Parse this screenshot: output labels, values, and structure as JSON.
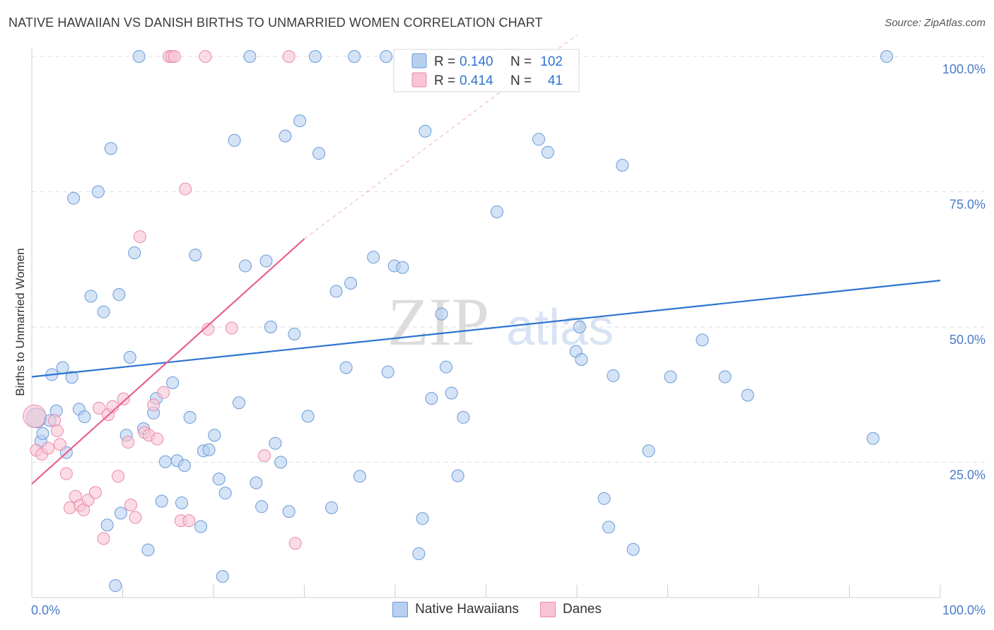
{
  "header": {
    "title": "NATIVE HAWAIIAN VS DANISH BIRTHS TO UNMARRIED WOMEN CORRELATION CHART",
    "source": "Source: ZipAtlas.com"
  },
  "watermark": {
    "zip": "ZIP",
    "atlas": "atlas"
  },
  "colors": {
    "blue_fill": "#b8d0f0",
    "blue_stroke": "#6a9ad8",
    "blue_line": "#2f74d0",
    "pink_fill": "#f8c4d4",
    "pink_stroke": "#ea8aa8",
    "pink_line": "#e8608e",
    "tick_label": "#4a7cc8",
    "grid": "#dedede"
  },
  "stats_legend": {
    "rows": [
      {
        "r_label": "R =",
        "r_value": "0.140",
        "n_label": "N =",
        "n_value": "102"
      },
      {
        "r_label": "R =",
        "r_value": "0.414",
        "n_label": "N =",
        "n_value": "41"
      }
    ]
  },
  "bottom_legend": {
    "items": [
      "Native Hawaiians",
      "Danes"
    ]
  },
  "chart_data": {
    "type": "scatter",
    "title": "NATIVE HAWAIIAN VS DANISH BIRTHS TO UNMARRIED WOMEN CORRELATION CHART",
    "xlabel": "",
    "ylabel": "Births to Unmarried Women",
    "xlim": [
      0,
      100
    ],
    "ylim": [
      0,
      100
    ],
    "x_tick_labels": [
      "0.0%",
      "100.0%"
    ],
    "y_ticks": [
      25,
      50,
      75,
      100
    ],
    "y_tick_labels": [
      "25.0%",
      "50.0%",
      "75.0%",
      "100.0%"
    ],
    "grid": true,
    "series": [
      {
        "name": "Native Hawaiians",
        "R": 0.14,
        "N": 102,
        "trend": {
          "x": [
            0,
            100
          ],
          "y": [
            40.8,
            58.6
          ],
          "style": "solid"
        },
        "points": [
          [
            0.5,
            33.2
          ],
          [
            1.0,
            28.9
          ],
          [
            1.2,
            30.3
          ],
          [
            2.0,
            32.7
          ],
          [
            2.2,
            41.2
          ],
          [
            2.7,
            34.5
          ],
          [
            3.4,
            42.5
          ],
          [
            3.8,
            26.8
          ],
          [
            4.4,
            40.7
          ],
          [
            4.6,
            73.8
          ],
          [
            5.2,
            34.8
          ],
          [
            5.8,
            33.4
          ],
          [
            6.5,
            55.7
          ],
          [
            7.3,
            75.0
          ],
          [
            7.9,
            52.8
          ],
          [
            8.3,
            13.4
          ],
          [
            8.7,
            83.0
          ],
          [
            9.2,
            2.2
          ],
          [
            9.6,
            56.0
          ],
          [
            9.8,
            15.6
          ],
          [
            10.4,
            30.0
          ],
          [
            10.8,
            44.4
          ],
          [
            11.3,
            63.7
          ],
          [
            11.8,
            100
          ],
          [
            12.3,
            31.2
          ],
          [
            12.8,
            8.8
          ],
          [
            13.4,
            34.1
          ],
          [
            13.7,
            36.8
          ],
          [
            14.3,
            17.8
          ],
          [
            14.7,
            25.1
          ],
          [
            15.5,
            39.7
          ],
          [
            16.0,
            25.3
          ],
          [
            16.5,
            17.5
          ],
          [
            16.8,
            24.4
          ],
          [
            17.4,
            33.3
          ],
          [
            18.0,
            63.3
          ],
          [
            18.6,
            13.1
          ],
          [
            18.9,
            27.1
          ],
          [
            19.5,
            27.3
          ],
          [
            20.1,
            30.0
          ],
          [
            20.6,
            21.9
          ],
          [
            21.0,
            3.9
          ],
          [
            21.3,
            19.3
          ],
          [
            22.3,
            84.5
          ],
          [
            22.8,
            36.0
          ],
          [
            23.5,
            61.3
          ],
          [
            24.0,
            100
          ],
          [
            24.7,
            21.2
          ],
          [
            25.3,
            16.8
          ],
          [
            25.8,
            62.2
          ],
          [
            26.3,
            50.0
          ],
          [
            26.8,
            28.5
          ],
          [
            27.4,
            25.0
          ],
          [
            27.9,
            85.3
          ],
          [
            28.3,
            15.9
          ],
          [
            28.9,
            48.7
          ],
          [
            29.5,
            88.1
          ],
          [
            30.4,
            33.5
          ],
          [
            31.2,
            100
          ],
          [
            31.6,
            82.1
          ],
          [
            33.0,
            16.6
          ],
          [
            33.5,
            56.6
          ],
          [
            34.6,
            42.5
          ],
          [
            35.1,
            58.1
          ],
          [
            35.5,
            100
          ],
          [
            36.1,
            22.4
          ],
          [
            37.6,
            62.9
          ],
          [
            39.0,
            100
          ],
          [
            39.2,
            41.7
          ],
          [
            39.9,
            61.3
          ],
          [
            40.8,
            61.0
          ],
          [
            42.0,
            100
          ],
          [
            42.6,
            8.1
          ],
          [
            43.0,
            14.6
          ],
          [
            43.3,
            86.2
          ],
          [
            44.0,
            36.8
          ],
          [
            45.1,
            52.4
          ],
          [
            45.6,
            42.6
          ],
          [
            46.2,
            37.8
          ],
          [
            46.9,
            22.5
          ],
          [
            47.5,
            33.3
          ],
          [
            50.5,
            100
          ],
          [
            51.2,
            71.3
          ],
          [
            53.5,
            100
          ],
          [
            55.8,
            84.7
          ],
          [
            56.8,
            82.3
          ],
          [
            59.9,
            45.5
          ],
          [
            60.3,
            50.0
          ],
          [
            60.5,
            44.0
          ],
          [
            63.0,
            18.3
          ],
          [
            63.5,
            13.0
          ],
          [
            64.0,
            41.0
          ],
          [
            65.0,
            79.9
          ],
          [
            66.2,
            8.9
          ],
          [
            67.9,
            27.1
          ],
          [
            70.3,
            40.8
          ],
          [
            73.8,
            47.6
          ],
          [
            76.3,
            40.8
          ],
          [
            78.8,
            37.4
          ],
          [
            92.6,
            29.4
          ],
          [
            94.1,
            100
          ]
        ]
      },
      {
        "name": "Danes",
        "R": 0.414,
        "N": 41,
        "trend": {
          "x": [
            0,
            30
          ],
          "y": [
            21.0,
            66.3
          ],
          "x_dashed_to": 60,
          "style": "solid-then-dashed"
        },
        "points": [
          [
            0.3,
            33.5
          ],
          [
            0.5,
            27.2
          ],
          [
            1.1,
            26.5
          ],
          [
            1.8,
            27.6
          ],
          [
            2.5,
            32.7
          ],
          [
            2.8,
            30.8
          ],
          [
            3.1,
            28.3
          ],
          [
            3.8,
            22.9
          ],
          [
            4.2,
            16.6
          ],
          [
            4.8,
            18.7
          ],
          [
            5.3,
            17.0
          ],
          [
            5.7,
            16.2
          ],
          [
            6.2,
            18.0
          ],
          [
            7.0,
            19.4
          ],
          [
            7.4,
            35.0
          ],
          [
            7.9,
            10.9
          ],
          [
            8.4,
            33.8
          ],
          [
            8.9,
            35.3
          ],
          [
            9.5,
            22.4
          ],
          [
            10.1,
            36.7
          ],
          [
            10.6,
            28.7
          ],
          [
            10.9,
            17.1
          ],
          [
            11.4,
            14.8
          ],
          [
            11.9,
            66.7
          ],
          [
            12.4,
            30.5
          ],
          [
            12.9,
            30.0
          ],
          [
            13.4,
            35.6
          ],
          [
            13.8,
            29.3
          ],
          [
            14.5,
            37.9
          ],
          [
            15.1,
            100
          ],
          [
            15.4,
            100
          ],
          [
            15.7,
            100
          ],
          [
            16.4,
            14.2
          ],
          [
            16.9,
            75.5
          ],
          [
            17.3,
            14.2
          ],
          [
            19.1,
            100
          ],
          [
            19.4,
            49.6
          ],
          [
            22.0,
            49.8
          ],
          [
            25.6,
            26.2
          ],
          [
            28.3,
            100
          ],
          [
            29.0,
            10.0
          ]
        ]
      }
    ]
  }
}
